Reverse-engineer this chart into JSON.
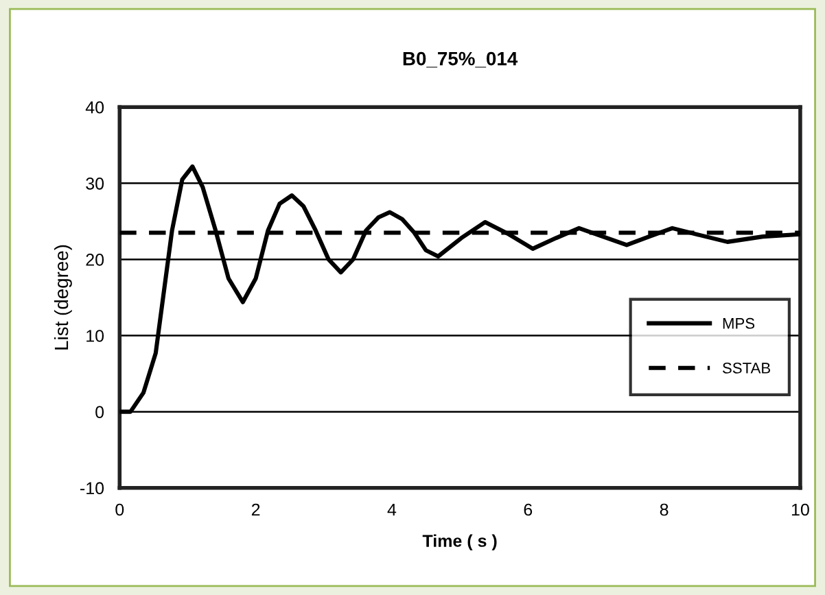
{
  "chart_data": {
    "type": "line",
    "title": "B0_75%_014",
    "xlabel": "Time ( s )",
    "ylabel": "List (degree)",
    "xlim": [
      0,
      10
    ],
    "xticks": [
      0,
      2,
      4,
      6,
      8,
      10
    ],
    "ylim": [
      -10,
      40
    ],
    "yticks": [
      -10,
      0,
      10,
      20,
      30,
      40
    ],
    "grid": "y",
    "legend": "right",
    "marker": "none",
    "series": [
      {
        "name": "MPS",
        "color": "#000000",
        "line_style": "solid",
        "x": [
          0,
          0.16,
          0.35,
          0.53,
          0.77,
          0.92,
          1.07,
          1.22,
          1.41,
          1.6,
          1.81,
          2.0,
          2.18,
          2.35,
          2.53,
          2.7,
          2.88,
          3.07,
          3.25,
          3.43,
          3.62,
          3.8,
          3.97,
          4.15,
          4.33,
          4.5,
          4.68,
          5.02,
          5.37,
          5.72,
          6.07,
          6.41,
          6.75,
          7.1,
          7.45,
          7.78,
          8.12,
          8.52,
          8.93,
          9.45,
          10
        ],
        "values": [
          0,
          0,
          2.5,
          7.7,
          23.8,
          30.5,
          32.2,
          29.5,
          23.8,
          17.5,
          14.4,
          17.5,
          23.8,
          27.3,
          28.4,
          27.0,
          23.8,
          20.0,
          18.3,
          20.0,
          23.8,
          25.5,
          26.2,
          25.3,
          23.5,
          21.2,
          20.4,
          22.8,
          24.9,
          23.3,
          21.4,
          22.8,
          24.1,
          23.0,
          21.9,
          23.0,
          24.1,
          23.2,
          22.3,
          23.0,
          23.3
        ]
      },
      {
        "name": "SSTAB",
        "color": "#000000",
        "line_style": "dashed",
        "x": [
          0,
          10
        ],
        "values": [
          23.5,
          23.5
        ]
      }
    ]
  }
}
